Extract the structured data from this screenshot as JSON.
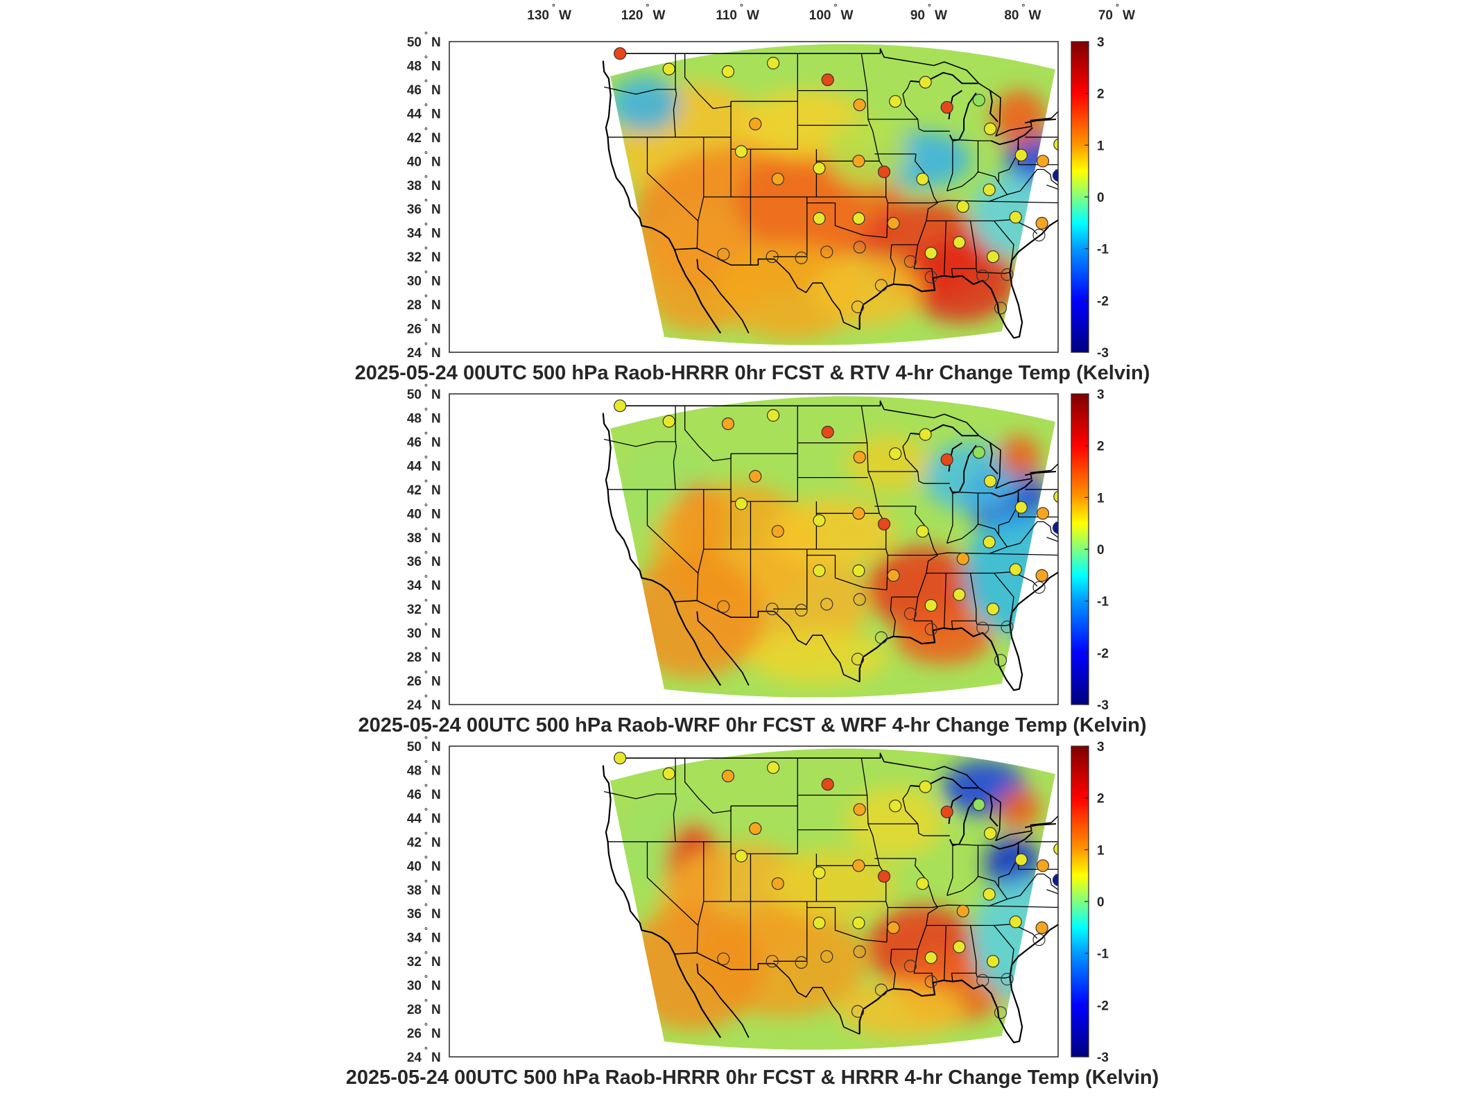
{
  "figure": {
    "lon_ticks": [
      {
        "deg": "130",
        "hemi": "W"
      },
      {
        "deg": "120",
        "hemi": "W"
      },
      {
        "deg": "110",
        "hemi": "W"
      },
      {
        "deg": "100",
        "hemi": "W"
      },
      {
        "deg": "90",
        "hemi": "W"
      },
      {
        "deg": "80",
        "hemi": "W"
      },
      {
        "deg": "70",
        "hemi": "W"
      }
    ],
    "lat_ticks": [
      {
        "deg": "50",
        "hemi": "N"
      },
      {
        "deg": "48",
        "hemi": "N"
      },
      {
        "deg": "46",
        "hemi": "N"
      },
      {
        "deg": "44",
        "hemi": "N"
      },
      {
        "deg": "42",
        "hemi": "N"
      },
      {
        "deg": "40",
        "hemi": "N"
      },
      {
        "deg": "38",
        "hemi": "N"
      },
      {
        "deg": "36",
        "hemi": "N"
      },
      {
        "deg": "34",
        "hemi": "N"
      },
      {
        "deg": "32",
        "hemi": "N"
      },
      {
        "deg": "30",
        "hemi": "N"
      },
      {
        "deg": "28",
        "hemi": "N"
      },
      {
        "deg": "26",
        "hemi": "N"
      },
      {
        "deg": "24",
        "hemi": "N"
      }
    ],
    "colorbar": {
      "ticks": [
        "3",
        "2",
        "1",
        "0",
        "-1",
        "-2",
        "-3"
      ],
      "stops": [
        "#800000",
        "#ff0000",
        "#ffff00",
        "#00ff80",
        "#00ffff",
        "#0000ff",
        "#000080"
      ]
    },
    "colors": {
      "warm": "#e8471a",
      "orange": "#f7a51e",
      "yellow": "#e8e82a",
      "green": "#8fe05a",
      "cyan": "#34d0e8",
      "blue": "#1a4fe0",
      "navy": "#0a1a9a",
      "outline": "#000000"
    }
  },
  "panels": [
    {
      "title": "2025-05-24 00UTC 500 hPa Raob-HRRR 0hr FCST & RTV 4-hr Change Temp (Kelvin)",
      "raob_values_K": [
        1.6,
        0.7,
        0.6,
        0.7,
        1.9,
        0.9,
        0.7,
        0.6,
        1.7,
        0.2,
        0.8,
        0.6,
        1.1,
        0.1,
        1.2,
        0.8,
        1.4,
        0.6,
        1.3,
        0.8,
        1.2,
        1.5,
        0.4,
        0.7,
        0.6,
        0.8,
        1.3,
        0.4,
        0.7,
        0.9,
        0.6,
        -2.8,
        0.5,
        0.7
      ]
    },
    {
      "title": "2025-05-24 00UTC 500 hPa Raob-WRF 0hr FCST & WRF 4-hr Change Temp (Kelvin)",
      "raob_values_K": [
        0.8,
        0.7,
        1.4,
        0.7,
        1.9,
        1.2,
        0.8,
        0.6,
        1.7,
        0.2,
        0.8,
        0.6,
        0.9,
        0.1,
        1.2,
        0.8,
        0.9,
        0.6,
        1.3,
        0.8,
        1.0,
        1.5,
        0.4,
        1.0,
        0.6,
        0.8,
        1.3,
        0.4,
        0.7,
        0.9,
        0.6,
        -2.8,
        0.5,
        0.7
      ]
    },
    {
      "title": "2025-05-24 00UTC 500 hPa Raob-HRRR 0hr FCST & HRRR 4-hr Change Temp (Kelvin)",
      "raob_values_K": [
        0.8,
        0.7,
        1.4,
        0.7,
        1.9,
        1.2,
        0.8,
        0.6,
        1.7,
        0.2,
        0.8,
        0.6,
        0.9,
        0.1,
        1.2,
        0.8,
        0.9,
        0.6,
        1.3,
        0.8,
        1.0,
        1.5,
        0.4,
        1.0,
        0.6,
        0.8,
        1.3,
        0.4,
        0.7,
        0.9,
        0.6,
        -2.8,
        0.5,
        0.7
      ]
    }
  ]
}
